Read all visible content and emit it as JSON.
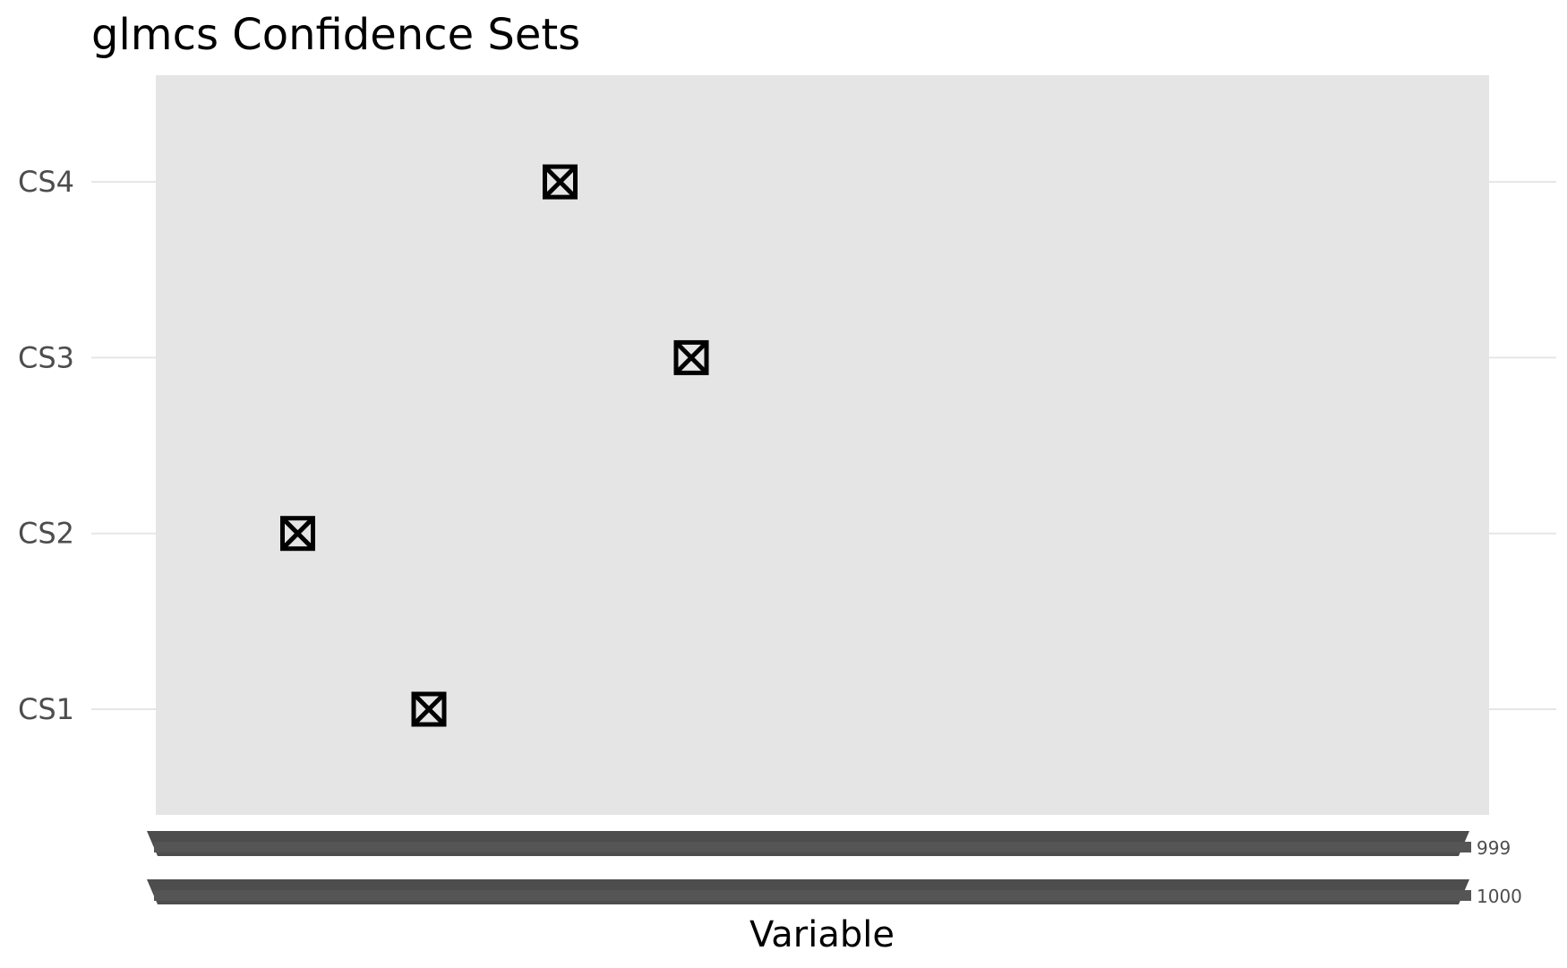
{
  "chart_data": {
    "type": "scatter",
    "title": "glmcs Confidence Sets",
    "xlabel": "Variable",
    "ylabel": "",
    "y_categories": [
      "CS1",
      "CS2",
      "CS3",
      "CS4"
    ],
    "xlim": [
      0,
      1000
    ],
    "x_tick_end_labels": [
      "1000",
      "999"
    ],
    "points": [
      {
        "x": 200,
        "y": "CS1"
      },
      {
        "x": 100,
        "y": "CS2"
      },
      {
        "x": 400,
        "y": "CS3"
      },
      {
        "x": 300,
        "y": "CS4"
      }
    ],
    "marker": "square-cross",
    "grid": true,
    "legend": "none",
    "colors": {
      "panel_bg": "#e5e5e5",
      "grid": "#e6e6e6",
      "marker": "#000000",
      "tick_text": "#4d4d4d"
    }
  }
}
